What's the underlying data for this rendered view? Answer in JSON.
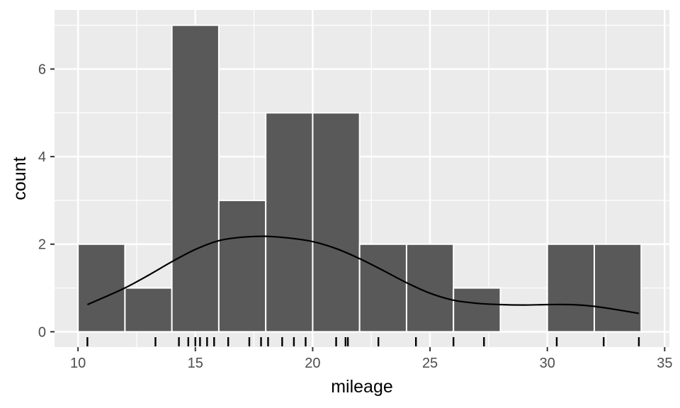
{
  "chart_data": {
    "type": "bar",
    "subtype": "histogram",
    "xlabel": "mileage",
    "ylabel": "count",
    "xlim": [
      9,
      35.2
    ],
    "ylim": [
      -0.35,
      7.35
    ],
    "x_ticks": [
      10,
      15,
      20,
      25,
      30,
      35
    ],
    "y_ticks": [
      0,
      2,
      4,
      6
    ],
    "x_minor_ticks": [
      12.5,
      17.5,
      22.5,
      27.5,
      32.5
    ],
    "y_minor_ticks": [
      1,
      3,
      5,
      7
    ],
    "binwidth": 2,
    "bins": [
      {
        "x0": 10,
        "x1": 12,
        "count": 2
      },
      {
        "x0": 12,
        "x1": 14,
        "count": 1
      },
      {
        "x0": 14,
        "x1": 16,
        "count": 7
      },
      {
        "x0": 16,
        "x1": 18,
        "count": 3
      },
      {
        "x0": 18,
        "x1": 20,
        "count": 5
      },
      {
        "x0": 20,
        "x1": 22,
        "count": 5
      },
      {
        "x0": 22,
        "x1": 24,
        "count": 2
      },
      {
        "x0": 24,
        "x1": 26,
        "count": 2
      },
      {
        "x0": 26,
        "x1": 28,
        "count": 1
      },
      {
        "x0": 28,
        "x1": 30,
        "count": 0
      },
      {
        "x0": 30,
        "x1": 32,
        "count": 2
      },
      {
        "x0": 32,
        "x1": 34,
        "count": 2
      }
    ],
    "rug": [
      10.4,
      13.3,
      14.3,
      14.7,
      15.0,
      15.2,
      15.5,
      15.8,
      16.4,
      17.3,
      17.8,
      18.1,
      18.7,
      19.2,
      19.7,
      21.0,
      21.4,
      21.5,
      22.8,
      24.4,
      26.0,
      27.3,
      30.4,
      32.4,
      33.9
    ],
    "density_curve": {
      "x": [
        10.4,
        11,
        12,
        13,
        14,
        15,
        16,
        17,
        18,
        19,
        20,
        21,
        22,
        23,
        24,
        25,
        26,
        27,
        28,
        29,
        30,
        31,
        32,
        33,
        33.9
      ],
      "y": [
        0.62,
        0.76,
        1.0,
        1.29,
        1.6,
        1.88,
        2.08,
        2.16,
        2.18,
        2.14,
        2.06,
        1.9,
        1.67,
        1.4,
        1.12,
        0.88,
        0.72,
        0.65,
        0.62,
        0.61,
        0.62,
        0.62,
        0.58,
        0.5,
        0.42
      ]
    },
    "colors": {
      "panel_background": "#EBEBEB",
      "grid": "#FFFFFF",
      "bar_fill": "#595959",
      "bar_outline": "#FFFFFF",
      "curve": "#000000",
      "rug": "#000000",
      "tick_label": "#4D4D4D"
    }
  }
}
